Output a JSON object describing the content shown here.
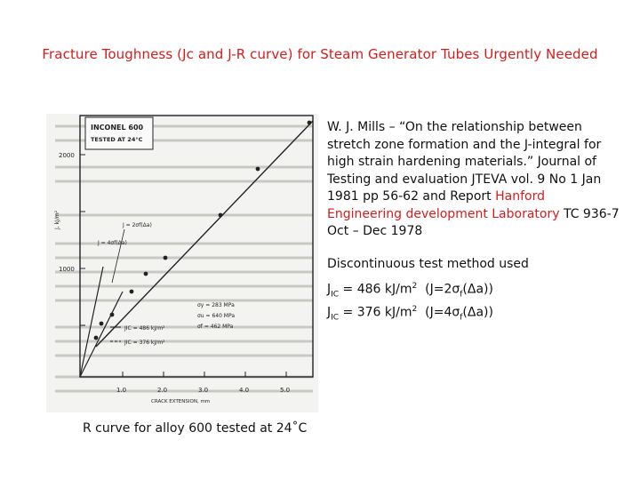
{
  "title": "Fracture Toughness (Jc and J-R curve) for Steam Generator Tubes Urgently Needed",
  "figure": {
    "legend_box": [
      "INCONEL 600",
      "TESTED AT 24°C"
    ],
    "y_axis_label": "J, kJ/m²",
    "y_ticks": [
      "2000",
      "1000"
    ],
    "x_ticks": [
      "1.0",
      "2.0",
      "3.0",
      "4.0",
      "5.0"
    ],
    "x_axis_label": "CRACK EXTENSION, mm",
    "line_labels": [
      "J = 2σf(Δa)",
      "J = 4σf(Δa)"
    ],
    "stress_values": [
      "σy = 283 MPa",
      "σu = 640 MPa",
      "σf = 462 MPa"
    ],
    "jic_values": [
      "JIC = 486 kJ/m²",
      "JIC = 376 kJ/m²"
    ]
  },
  "caption": "R curve for alloy 600 tested at 24˚C",
  "reference": {
    "text_before": "W. J. Mills – “On the relationship between stretch zone formation and the J-integral for high strain hardening materials.” Journal of Testing and evaluation JTEVA vol. 9 No 1 Jan 1981 pp 56-62 and Report ",
    "highlight": "Hanford Engineering development Laboratory",
    "text_after": " TC 936-7 Oct – Dec 1978"
  },
  "method": "Discontinuous test method used",
  "equations": [
    {
      "j": "J",
      "sub": "IC",
      "rest": " = 486 kJ/m",
      "sup": "2",
      "tail": "  (J=2σ",
      "fsub": "f",
      "end": "(Δa))"
    },
    {
      "j": "J",
      "sub": "IC",
      "rest": " = 376 kJ/m",
      "sup": "2",
      "tail": "  (J=4σ",
      "fsub": "f",
      "end": "(Δa))"
    }
  ],
  "colors": {
    "accent": "#d51c1c",
    "text": "#111111"
  }
}
